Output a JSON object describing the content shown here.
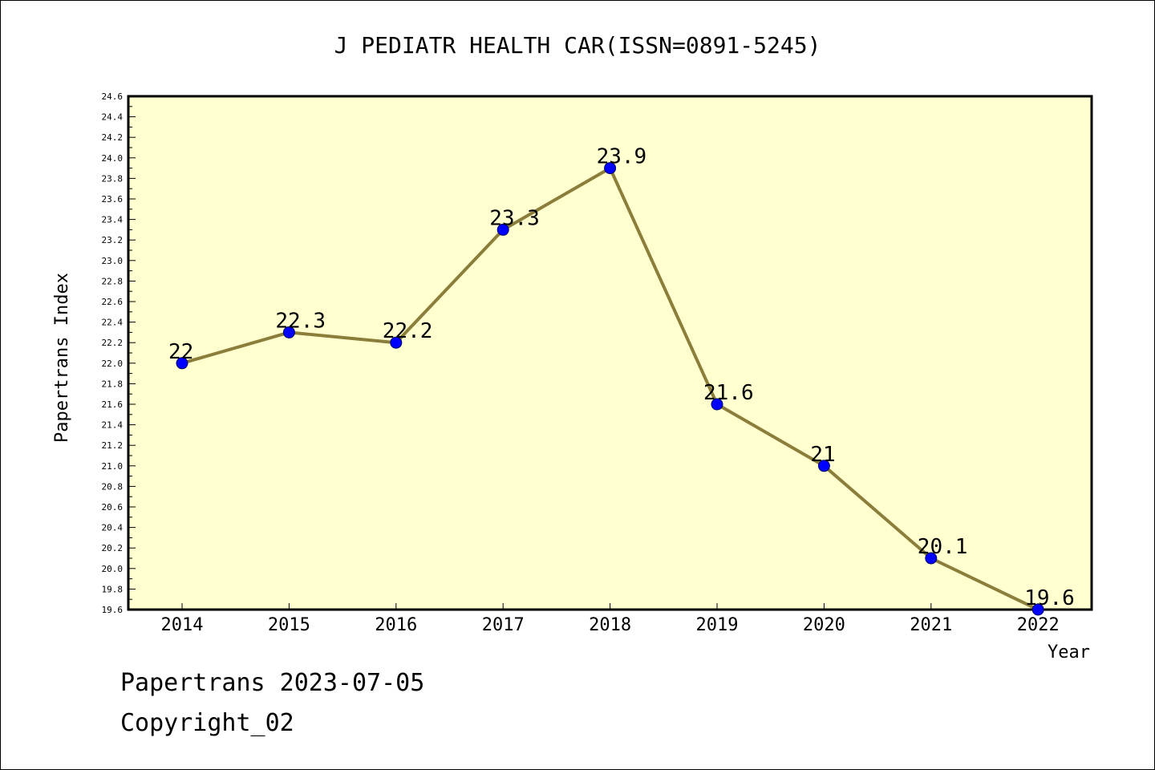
{
  "chart_data": {
    "type": "line",
    "title": "J PEDIATR HEALTH CAR(ISSN=0891-5245)",
    "xlabel": "Year",
    "ylabel": "Papertrans Index",
    "categories": [
      "2014",
      "2015",
      "2016",
      "2017",
      "2018",
      "2019",
      "2020",
      "2021",
      "2022"
    ],
    "series": [
      {
        "values": [
          22,
          22.3,
          22.2,
          23.3,
          23.9,
          21.6,
          21,
          20.1,
          19.6
        ],
        "labels": [
          "22",
          "22.3",
          "22.2",
          "23.3",
          "23.9",
          "21.6",
          "21",
          "20.1",
          "19.6"
        ]
      }
    ],
    "ylim": [
      19.6,
      24.6
    ],
    "yticks": [
      "19.6",
      "19.8",
      "20.0",
      "20.2",
      "20.4",
      "20.6",
      "20.8",
      "21.0",
      "21.2",
      "21.4",
      "21.6",
      "21.8",
      "22.0",
      "22.2",
      "22.4",
      "22.6",
      "22.8",
      "23.0",
      "23.2",
      "23.4",
      "23.6",
      "23.8",
      "24.0",
      "24.2",
      "24.4",
      "24.6"
    ],
    "grid": false,
    "colors": {
      "plot_background": "#ffffd0",
      "line": "#8b7d3a",
      "marker": "#0000ff"
    }
  },
  "footer": {
    "line1": "Papertrans 2023-07-05",
    "line2": "Copyright_02"
  }
}
